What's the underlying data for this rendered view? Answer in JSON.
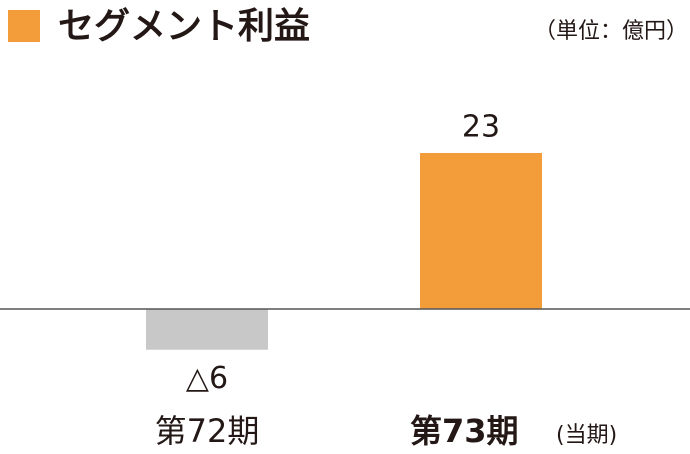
{
  "chart_data": {
    "type": "bar",
    "title": "セグメント利益",
    "unit": "（単位：億円）",
    "categories": [
      "第72期",
      "第73期"
    ],
    "category_note": "(当期)",
    "values": [
      -6,
      23
    ],
    "value_labels": [
      "△6",
      "23"
    ],
    "colors": [
      "#c8c8c8",
      "#f39c3a"
    ],
    "title_marker_color": "#f39c3a",
    "ylim": [
      -8,
      23
    ]
  }
}
